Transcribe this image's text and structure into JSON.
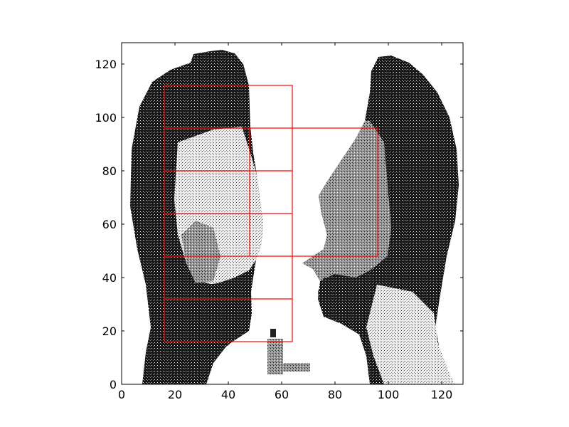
{
  "chart_data": {
    "type": "image",
    "title": "",
    "xlabel": "",
    "ylabel": "",
    "xlim": [
      0,
      128
    ],
    "ylim": [
      0,
      128
    ],
    "x_ticks": [
      0,
      20,
      40,
      60,
      80,
      100,
      120
    ],
    "y_ticks": [
      0,
      20,
      40,
      60,
      80,
      100,
      120
    ],
    "grid": false,
    "legend": "none",
    "image_content": "two human head silhouettes facing each other in grayscale profile",
    "overlay_color": "#ff0000",
    "overlay_boxes": [
      {
        "x0": 16,
        "y0": 16,
        "x1": 64,
        "y1": 112
      },
      {
        "x0": 16,
        "y0": 96,
        "x1": 96,
        "y1": 96
      },
      {
        "x0": 16,
        "y0": 80,
        "x1": 64,
        "y1": 80
      },
      {
        "x0": 16,
        "y0": 64,
        "x1": 64,
        "y1": 64
      },
      {
        "x0": 16,
        "y0": 48,
        "x1": 96,
        "y1": 48
      },
      {
        "x0": 16,
        "y0": 32,
        "x1": 64,
        "y1": 32
      },
      {
        "x0": 48,
        "y0": 48,
        "x1": 48,
        "y1": 96
      },
      {
        "x0": 96,
        "y0": 48,
        "x1": 96,
        "y1": 96
      }
    ]
  },
  "colors": {
    "axes": "#000000",
    "hair": "#111111",
    "skin_dark": "#3a3a3a",
    "skin_light": "#bdbdbd",
    "overlay": "#ff0000"
  }
}
